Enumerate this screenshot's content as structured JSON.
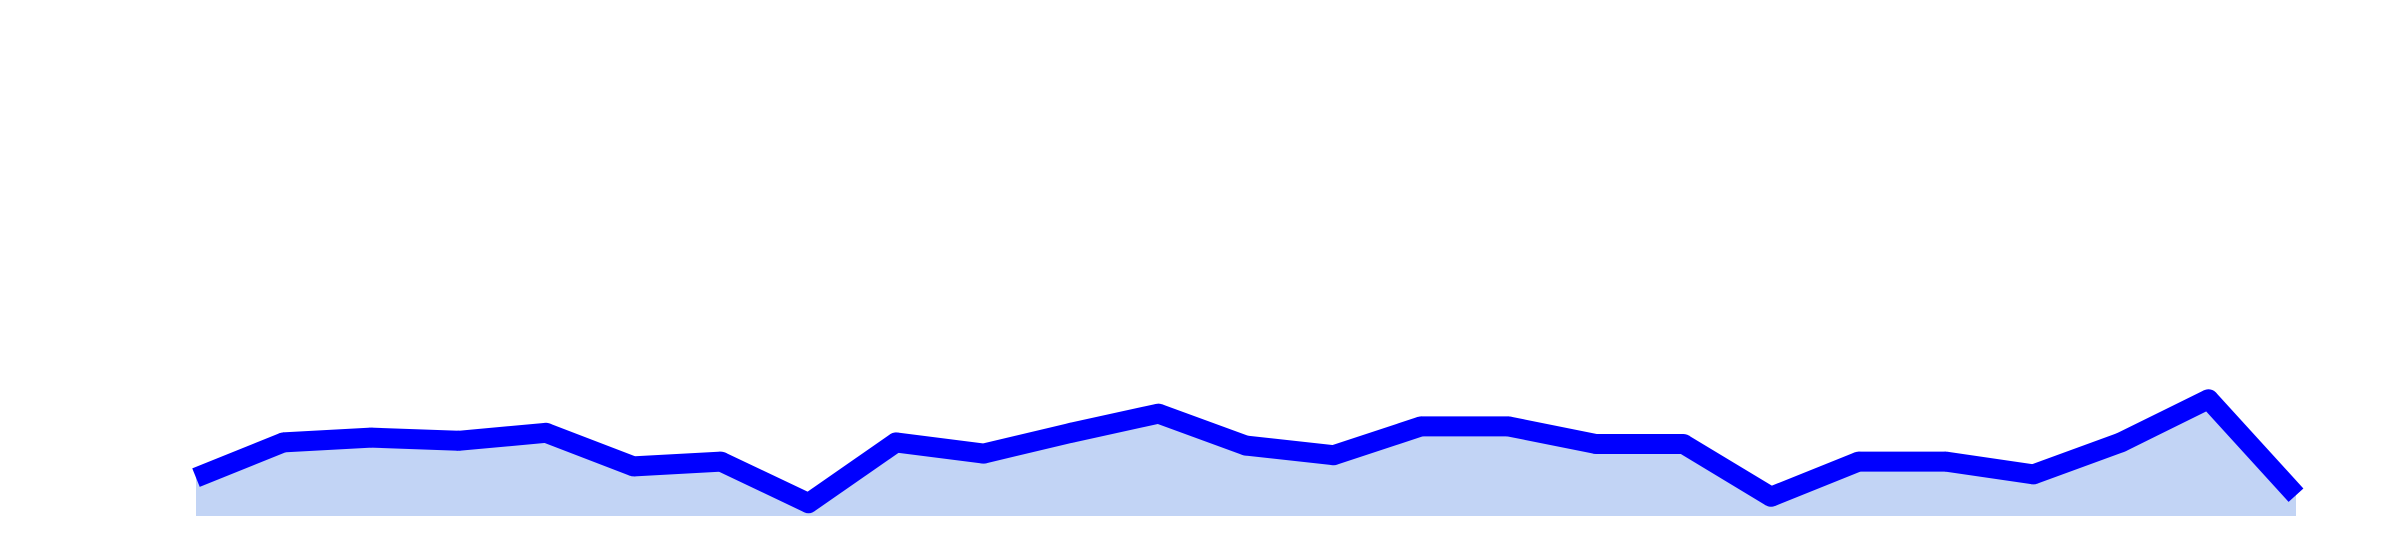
{
  "chart_data": {
    "type": "area",
    "title": "",
    "xlabel": "",
    "ylabel": "",
    "grid": false,
    "legend": "none",
    "x": [
      0,
      1,
      2,
      3,
      4,
      5,
      6,
      7,
      8,
      9,
      10,
      11,
      12,
      13,
      14,
      15,
      16,
      17,
      18,
      19,
      20,
      21,
      22,
      23,
      24
    ],
    "series": [
      {
        "values": [
          12,
          23,
          24.5,
          23.5,
          26,
          15.5,
          17,
          4,
          23,
          19.5,
          26,
          32,
          22,
          19,
          28,
          28,
          22.5,
          22.5,
          6,
          17,
          17,
          13,
          23,
          36.5,
          6.5
        ]
      }
    ],
    "ylim": [
      0,
      110
    ],
    "colors": {
      "line": "#0000ff",
      "fill": "#c2d4f5",
      "background": "#ffffff"
    }
  }
}
